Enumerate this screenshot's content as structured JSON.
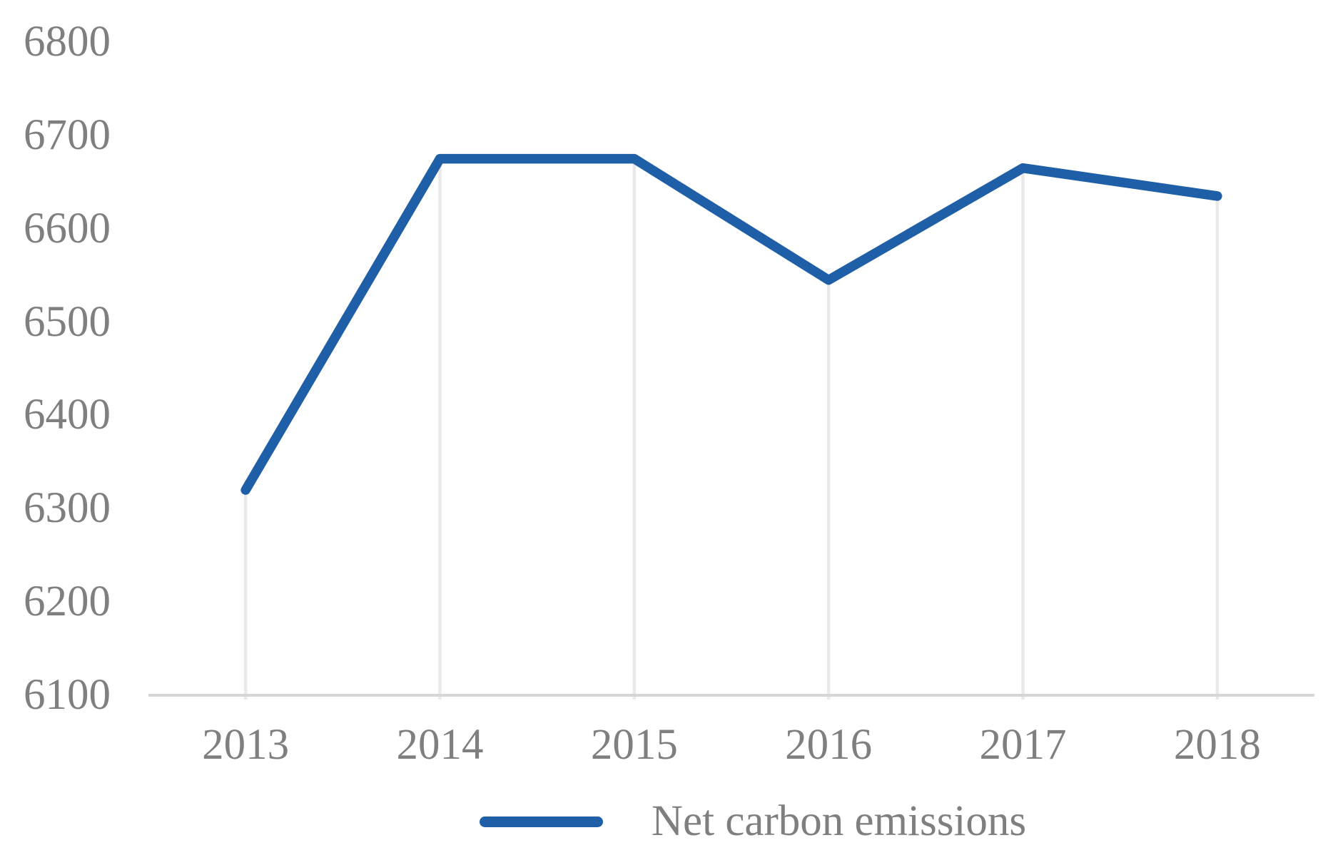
{
  "chart_data": {
    "type": "line",
    "title": "",
    "categories": [
      "2013",
      "2014",
      "2015",
      "2016",
      "2017",
      "2018"
    ],
    "series": [
      {
        "name": "Net carbon emissions",
        "values": [
          6320,
          6675,
          6675,
          6545,
          6665,
          6635
        ]
      }
    ],
    "xlabel": "",
    "ylabel": "",
    "ylim": [
      6100,
      6800
    ],
    "ytick_step": 100,
    "yticks": [
      6800,
      6700,
      6600,
      6500,
      6400,
      6300,
      6200,
      6100
    ],
    "grid": "vertical-drop-lines-only",
    "legend": {
      "position": "bottom-center",
      "entries": [
        "Net carbon emissions"
      ]
    },
    "colors": {
      "line": "#1F5FA8",
      "axis_line": "#D6D6D6",
      "drop_line": "#E9E9E9",
      "tick_label": "#7F7F7F",
      "legend_text": "#7F7F7F",
      "background": "#FFFFFF"
    }
  }
}
